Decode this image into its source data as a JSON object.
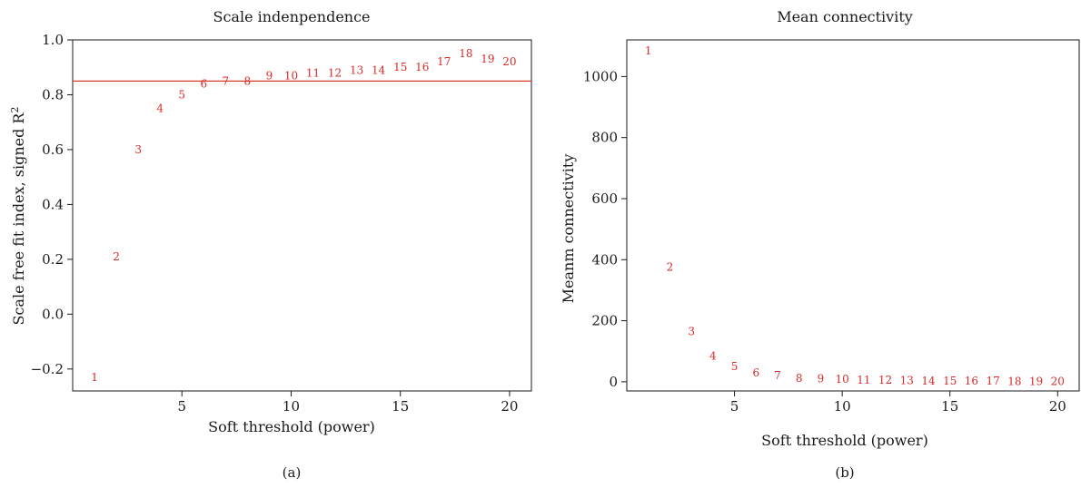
{
  "chart_data": [
    {
      "type": "scatter",
      "title": "Scale indenpendence",
      "xlabel": "Soft threshold (power)",
      "ylabel": "Scale free fit index, signed R",
      "ylabel_sup": "2",
      "caption": "(a)",
      "xlim": [
        0,
        21
      ],
      "ylim": [
        -0.28,
        1.0
      ],
      "xticks": [
        5,
        10,
        15,
        20
      ],
      "yticks": [
        -0.2,
        0.0,
        0.2,
        0.4,
        0.6,
        0.8,
        1.0
      ],
      "ytick_labels": [
        "−0.2",
        "0.0",
        "0.2",
        "0.4",
        "0.6",
        "0.8",
        "1.0"
      ],
      "reference_line": 0.85,
      "reference_color": "#d93a2a",
      "point_color": "#d92b2b",
      "points": [
        {
          "x": 1,
          "y": -0.23,
          "label": "1"
        },
        {
          "x": 2,
          "y": 0.21,
          "label": "2"
        },
        {
          "x": 3,
          "y": 0.6,
          "label": "3"
        },
        {
          "x": 4,
          "y": 0.75,
          "label": "4"
        },
        {
          "x": 5,
          "y": 0.8,
          "label": "5"
        },
        {
          "x": 6,
          "y": 0.84,
          "label": "6"
        },
        {
          "x": 7,
          "y": 0.85,
          "label": "7"
        },
        {
          "x": 8,
          "y": 0.85,
          "label": "8"
        },
        {
          "x": 9,
          "y": 0.87,
          "label": "9"
        },
        {
          "x": 10,
          "y": 0.87,
          "label": "10"
        },
        {
          "x": 11,
          "y": 0.88,
          "label": "11"
        },
        {
          "x": 12,
          "y": 0.88,
          "label": "12"
        },
        {
          "x": 13,
          "y": 0.89,
          "label": "13"
        },
        {
          "x": 14,
          "y": 0.89,
          "label": "14"
        },
        {
          "x": 15,
          "y": 0.9,
          "label": "15"
        },
        {
          "x": 16,
          "y": 0.9,
          "label": "16"
        },
        {
          "x": 17,
          "y": 0.92,
          "label": "17"
        },
        {
          "x": 18,
          "y": 0.95,
          "label": "18"
        },
        {
          "x": 19,
          "y": 0.93,
          "label": "19"
        },
        {
          "x": 20,
          "y": 0.92,
          "label": "20"
        }
      ]
    },
    {
      "type": "scatter",
      "title": "Mean connectivity",
      "xlabel": "Soft threshold (power)",
      "ylabel": "Meanm connectivity",
      "caption": "(b)",
      "xlim": [
        0,
        21
      ],
      "ylim": [
        -30,
        1120
      ],
      "xticks": [
        5,
        10,
        15,
        20
      ],
      "yticks": [
        0,
        200,
        400,
        600,
        800,
        1000
      ],
      "point_color": "#d92b2b",
      "points": [
        {
          "x": 1,
          "y": 1085,
          "label": "1"
        },
        {
          "x": 2,
          "y": 375,
          "label": "2"
        },
        {
          "x": 3,
          "y": 165,
          "label": "3"
        },
        {
          "x": 4,
          "y": 85,
          "label": "4"
        },
        {
          "x": 5,
          "y": 50,
          "label": "5"
        },
        {
          "x": 6,
          "y": 30,
          "label": "6"
        },
        {
          "x": 7,
          "y": 20,
          "label": "7"
        },
        {
          "x": 8,
          "y": 12,
          "label": "8"
        },
        {
          "x": 9,
          "y": 10,
          "label": "9"
        },
        {
          "x": 10,
          "y": 8,
          "label": "10"
        },
        {
          "x": 11,
          "y": 6,
          "label": "11"
        },
        {
          "x": 12,
          "y": 5,
          "label": "12"
        },
        {
          "x": 13,
          "y": 4,
          "label": "13"
        },
        {
          "x": 14,
          "y": 3,
          "label": "14"
        },
        {
          "x": 15,
          "y": 3,
          "label": "15"
        },
        {
          "x": 16,
          "y": 2,
          "label": "16"
        },
        {
          "x": 17,
          "y": 2,
          "label": "17"
        },
        {
          "x": 18,
          "y": 1,
          "label": "18"
        },
        {
          "x": 19,
          "y": 1,
          "label": "19"
        },
        {
          "x": 20,
          "y": 1,
          "label": "20"
        }
      ]
    }
  ]
}
